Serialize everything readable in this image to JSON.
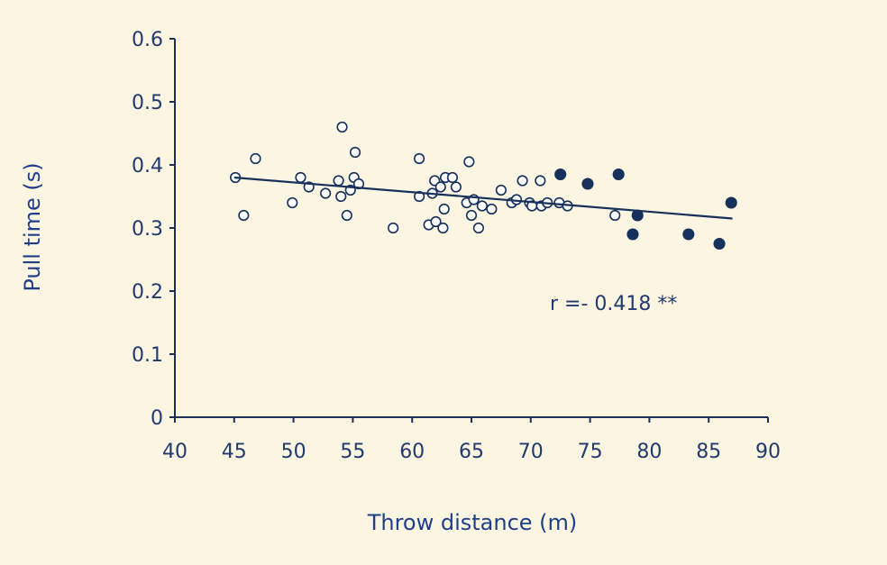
{
  "chart_data": {
    "type": "scatter",
    "xlabel": "Throw distance (m)",
    "ylabel": "Pull time (s)",
    "xlim": [
      40,
      90
    ],
    "ylim": [
      0,
      0.6
    ],
    "x_ticks": [
      "40",
      "45",
      "50",
      "55",
      "60",
      "65",
      "70",
      "75",
      "80",
      "85",
      "90"
    ],
    "y_ticks": [
      "0",
      "0.1",
      "0.2",
      "0.3",
      "0.4",
      "0.5",
      "0.6"
    ],
    "annotation": "r =- 0.418 **",
    "grid": false,
    "colors": {
      "background": "#fbf5e2",
      "axis": "#1d2f57",
      "series": "#17305c",
      "open_marker_fill": "#ffffff",
      "trend_line": "#17305c"
    },
    "series": [
      {
        "marker": "open-circle",
        "points": [
          [
            45.1,
            0.38
          ],
          [
            45.8,
            0.32
          ],
          [
            46.8,
            0.41
          ],
          [
            49.9,
            0.34
          ],
          [
            50.6,
            0.38
          ],
          [
            51.3,
            0.365
          ],
          [
            52.7,
            0.355
          ],
          [
            53.8,
            0.375
          ],
          [
            54.1,
            0.46
          ],
          [
            54.0,
            0.35
          ],
          [
            54.5,
            0.32
          ],
          [
            54.8,
            0.36
          ],
          [
            55.1,
            0.38
          ],
          [
            55.2,
            0.42
          ],
          [
            55.5,
            0.37
          ],
          [
            58.4,
            0.3
          ],
          [
            60.6,
            0.41
          ],
          [
            60.6,
            0.35
          ],
          [
            61.4,
            0.305
          ],
          [
            61.7,
            0.355
          ],
          [
            61.9,
            0.375
          ],
          [
            62.0,
            0.31
          ],
          [
            62.4,
            0.365
          ],
          [
            62.6,
            0.3
          ],
          [
            62.7,
            0.33
          ],
          [
            62.8,
            0.38
          ],
          [
            63.4,
            0.38
          ],
          [
            63.7,
            0.365
          ],
          [
            64.6,
            0.34
          ],
          [
            64.8,
            0.405
          ],
          [
            65.0,
            0.32
          ],
          [
            65.2,
            0.345
          ],
          [
            65.6,
            0.3
          ],
          [
            65.9,
            0.335
          ],
          [
            66.7,
            0.33
          ],
          [
            67.5,
            0.36
          ],
          [
            68.4,
            0.34
          ],
          [
            68.8,
            0.345
          ],
          [
            69.3,
            0.375
          ],
          [
            69.9,
            0.34
          ],
          [
            70.1,
            0.335
          ],
          [
            70.8,
            0.375
          ],
          [
            70.9,
            0.335
          ],
          [
            71.4,
            0.34
          ],
          [
            72.4,
            0.34
          ],
          [
            73.1,
            0.335
          ],
          [
            77.1,
            0.32
          ]
        ]
      },
      {
        "marker": "filled-circle",
        "points": [
          [
            72.5,
            0.385
          ],
          [
            74.8,
            0.37
          ],
          [
            77.4,
            0.385
          ],
          [
            78.6,
            0.29
          ],
          [
            79.0,
            0.32
          ],
          [
            83.3,
            0.29
          ],
          [
            85.9,
            0.275
          ],
          [
            86.9,
            0.34
          ]
        ]
      }
    ],
    "trend_line": {
      "x": [
        45,
        87
      ],
      "y": [
        0.38,
        0.315
      ]
    }
  }
}
